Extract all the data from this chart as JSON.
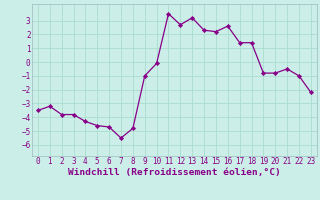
{
  "x": [
    0,
    1,
    2,
    3,
    4,
    5,
    6,
    7,
    8,
    9,
    10,
    11,
    12,
    13,
    14,
    15,
    16,
    17,
    18,
    19,
    20,
    21,
    22,
    23
  ],
  "y": [
    -3.5,
    -3.2,
    -3.8,
    -3.8,
    -4.3,
    -4.6,
    -4.7,
    -5.5,
    -4.8,
    -1.0,
    -0.1,
    3.5,
    2.7,
    3.2,
    2.3,
    2.2,
    2.6,
    1.4,
    1.4,
    -0.8,
    -0.8,
    -0.5,
    -1.0,
    -2.2
  ],
  "line_color": "#880088",
  "marker": "D",
  "marker_size": 2.2,
  "bg_color": "#cceee8",
  "grid_color": "#aaddcc",
  "xlabel": "Windchill (Refroidissement éolien,°C)",
  "xlim": [
    -0.5,
    23.5
  ],
  "ylim": [
    -6.8,
    4.2
  ],
  "yticks": [
    -6,
    -5,
    -4,
    -3,
    -2,
    -1,
    0,
    1,
    2,
    3
  ],
  "xticks": [
    0,
    1,
    2,
    3,
    4,
    5,
    6,
    7,
    8,
    9,
    10,
    11,
    12,
    13,
    14,
    15,
    16,
    17,
    18,
    19,
    20,
    21,
    22,
    23
  ],
  "tick_fontsize": 5.5,
  "xlabel_fontsize": 6.8,
  "label_color": "#880088",
  "spine_color": "#99bbbb",
  "linewidth": 0.9
}
